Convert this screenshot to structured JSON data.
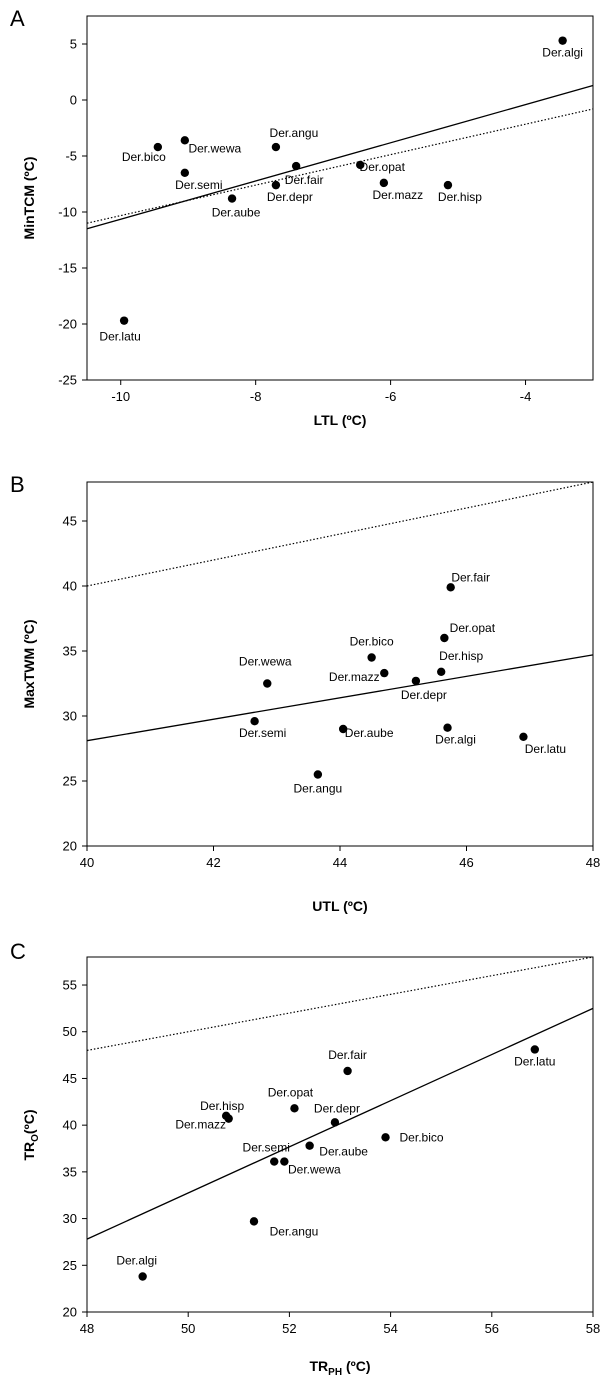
{
  "chart_data": [
    {
      "panel": "A",
      "type": "scatter",
      "xlabel": "LTL (ºC)",
      "ylabel": "MinTCM (ºC)",
      "xlim": [
        -10.5,
        -3
      ],
      "ylim": [
        -25,
        7.5
      ],
      "xticks": [
        -10,
        -8,
        -6,
        -4
      ],
      "yticks": [
        -25,
        -20,
        -15,
        -10,
        -5,
        0,
        5
      ],
      "points": [
        {
          "label": "Der.algi",
          "x": -3.45,
          "y": 5.3
        },
        {
          "label": "Der.bico",
          "x": -9.45,
          "y": -4.2
        },
        {
          "label": "Der.wewa",
          "x": -9.05,
          "y": -3.6
        },
        {
          "label": "Der.semi",
          "x": -9.05,
          "y": -6.5
        },
        {
          "label": "Der.angu",
          "x": -7.7,
          "y": -4.2
        },
        {
          "label": "Der.fair",
          "x": -7.4,
          "y": -5.9
        },
        {
          "label": "Der.depr",
          "x": -7.7,
          "y": -7.6
        },
        {
          "label": "Der.aube",
          "x": -8.35,
          "y": -8.8
        },
        {
          "label": "Der.opat",
          "x": -6.45,
          "y": -5.8
        },
        {
          "label": "Der.mazz",
          "x": -6.1,
          "y": -7.4
        },
        {
          "label": "Der.hisp",
          "x": -5.15,
          "y": -7.6
        },
        {
          "label": "Der.latu",
          "x": -9.95,
          "y": -19.7
        }
      ],
      "lines": [
        {
          "style": "solid",
          "x": [
            -10.5,
            -3
          ],
          "y": [
            -11.5,
            1.3
          ]
        },
        {
          "style": "dotted",
          "x": [
            -10.5,
            -3
          ],
          "y": [
            -11.0,
            -0.8
          ]
        }
      ]
    },
    {
      "panel": "B",
      "type": "scatter",
      "xlabel": "UTL (ºC)",
      "ylabel": "MaxTWM (ºC)",
      "xlim": [
        40,
        48
      ],
      "ylim": [
        20,
        48
      ],
      "xticks": [
        40,
        42,
        44,
        46,
        48
      ],
      "yticks": [
        20,
        25,
        30,
        35,
        40,
        45
      ],
      "points": [
        {
          "label": "Der.fair",
          "x": 45.75,
          "y": 39.9
        },
        {
          "label": "Der.opat",
          "x": 45.65,
          "y": 36.0
        },
        {
          "label": "Der.bico",
          "x": 44.5,
          "y": 34.5
        },
        {
          "label": "Der.hisp",
          "x": 45.6,
          "y": 33.4
        },
        {
          "label": "Der.mazz",
          "x": 44.7,
          "y": 33.3
        },
        {
          "label": "Der.depr",
          "x": 45.2,
          "y": 32.7
        },
        {
          "label": "Der.wewa",
          "x": 42.85,
          "y": 32.5
        },
        {
          "label": "Der.semi",
          "x": 42.65,
          "y": 29.6
        },
        {
          "label": "Der.aube",
          "x": 44.05,
          "y": 29.0
        },
        {
          "label": "Der.algi",
          "x": 45.7,
          "y": 29.1
        },
        {
          "label": "Der.latu",
          "x": 46.9,
          "y": 28.4
        },
        {
          "label": "Der.angu",
          "x": 43.65,
          "y": 25.5
        }
      ],
      "lines": [
        {
          "style": "solid",
          "x": [
            40,
            48
          ],
          "y": [
            28.1,
            34.7
          ]
        },
        {
          "style": "dotted",
          "x": [
            40,
            48
          ],
          "y": [
            40.0,
            48.0
          ]
        }
      ]
    },
    {
      "panel": "C",
      "type": "scatter",
      "xlabel": "TR",
      "xlabel_sub": "PH",
      "xlabel_suffix": " (ºC)",
      "ylabel": "TR",
      "ylabel_sub": "O",
      "ylabel_suffix": "(ºC)",
      "xlim": [
        48,
        58
      ],
      "ylim": [
        20,
        58
      ],
      "xticks": [
        48,
        50,
        52,
        54,
        56,
        58
      ],
      "yticks": [
        20,
        25,
        30,
        35,
        40,
        45,
        50,
        55
      ],
      "points": [
        {
          "label": "Der.fair",
          "x": 53.15,
          "y": 45.8
        },
        {
          "label": "Der.latu",
          "x": 56.85,
          "y": 48.1
        },
        {
          "label": "Der.opat",
          "x": 52.1,
          "y": 41.8
        },
        {
          "label": "Der.hisp",
          "x": 50.75,
          "y": 41.0
        },
        {
          "label": "Der.mazz",
          "x": 50.8,
          "y": 40.7
        },
        {
          "label": "Der.depr",
          "x": 52.9,
          "y": 40.3
        },
        {
          "label": "Der.bico",
          "x": 53.9,
          "y": 38.7
        },
        {
          "label": "Der.aube",
          "x": 52.4,
          "y": 37.8
        },
        {
          "label": "Der.semi",
          "x": 51.7,
          "y": 36.1
        },
        {
          "label": "Der.wewa",
          "x": 51.9,
          "y": 36.1
        },
        {
          "label": "Der.angu",
          "x": 51.3,
          "y": 29.7
        },
        {
          "label": "Der.algi",
          "x": 49.1,
          "y": 23.8
        }
      ],
      "lines": [
        {
          "style": "solid",
          "x": [
            48,
            58
          ],
          "y": [
            27.8,
            52.5
          ]
        },
        {
          "style": "dotted",
          "x": [
            48,
            58
          ],
          "y": [
            48.0,
            58.0
          ]
        }
      ]
    }
  ]
}
